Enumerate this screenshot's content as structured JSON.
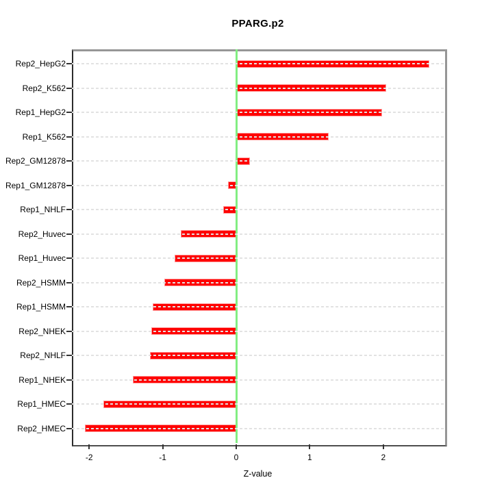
{
  "chart_data": {
    "type": "bar",
    "orientation": "horizontal",
    "title": "PPARG.p2",
    "xlabel": "Z-value",
    "ylabel": "",
    "categories": [
      "Rep2_HepG2",
      "Rep2_K562",
      "Rep1_HepG2",
      "Rep1_K562",
      "Rep2_GM12878",
      "Rep1_GM12878",
      "Rep1_NHLF",
      "Rep2_Huvec",
      "Rep1_Huvec",
      "Rep2_HSMM",
      "Rep1_HSMM",
      "Rep2_NHEK",
      "Rep2_NHLF",
      "Rep1_NHEK",
      "Rep1_HMEC",
      "Rep2_HMEC"
    ],
    "values": [
      2.63,
      2.04,
      1.98,
      1.26,
      0.19,
      -0.11,
      -0.18,
      -0.75,
      -0.84,
      -0.98,
      -1.14,
      -1.15,
      -1.17,
      -1.41,
      -1.81,
      -2.06
    ],
    "x_ticks": [
      -2,
      -1,
      0,
      1,
      2
    ],
    "xlim": [
      -2.24,
      2.83
    ],
    "grid": "horizontal-dashed",
    "legend": "none",
    "zero_reference_line": 0,
    "colors": {
      "bar_fill": "#ff0000",
      "bar_border": "#ff9e9e",
      "zero_line": "#82ee82",
      "gridline": "#e2e2e2",
      "axis_text": "#000000",
      "background": "#ffffff"
    }
  }
}
